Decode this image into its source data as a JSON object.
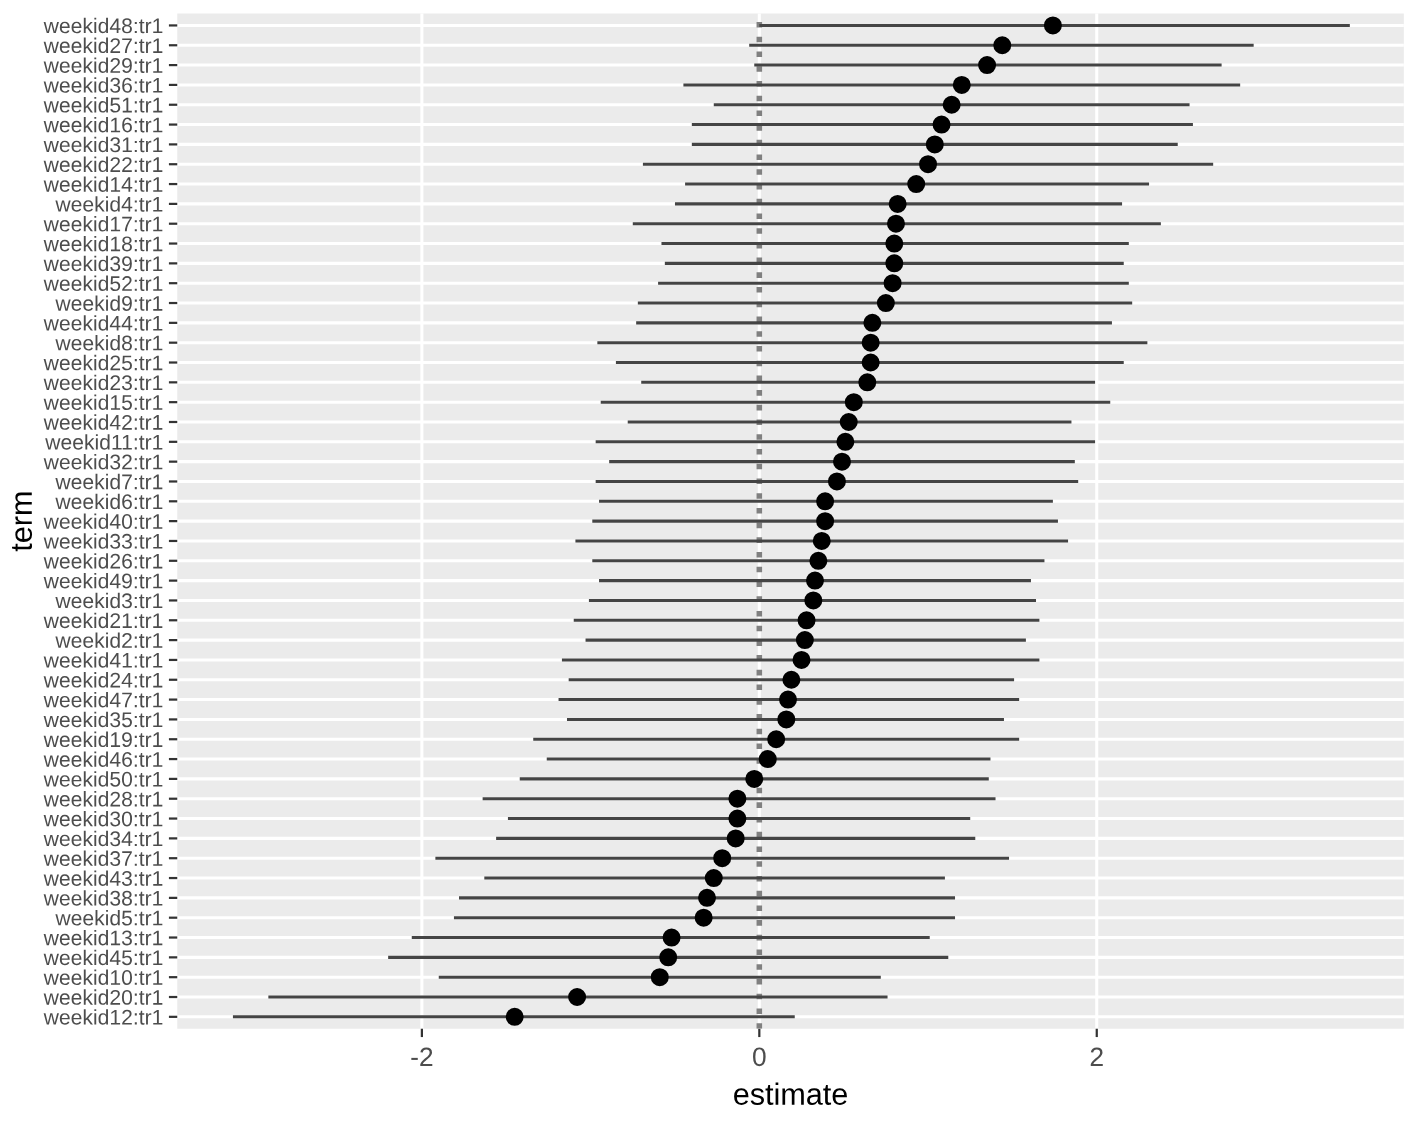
{
  "chart_data": {
    "type": "scatter",
    "orientation": "horizontal",
    "xlabel": "estimate",
    "ylabel": "term",
    "categories": [
      "weekid48:tr1",
      "weekid27:tr1",
      "weekid29:tr1",
      "weekid36:tr1",
      "weekid51:tr1",
      "weekid16:tr1",
      "weekid31:tr1",
      "weekid22:tr1",
      "weekid14:tr1",
      "weekid4:tr1",
      "weekid17:tr1",
      "weekid18:tr1",
      "weekid39:tr1",
      "weekid52:tr1",
      "weekid9:tr1",
      "weekid44:tr1",
      "weekid8:tr1",
      "weekid25:tr1",
      "weekid23:tr1",
      "weekid15:tr1",
      "weekid42:tr1",
      "weekid11:tr1",
      "weekid32:tr1",
      "weekid7:tr1",
      "weekid6:tr1",
      "weekid40:tr1",
      "weekid33:tr1",
      "weekid26:tr1",
      "weekid49:tr1",
      "weekid3:tr1",
      "weekid21:tr1",
      "weekid2:tr1",
      "weekid41:tr1",
      "weekid24:tr1",
      "weekid47:tr1",
      "weekid35:tr1",
      "weekid19:tr1",
      "weekid46:tr1",
      "weekid50:tr1",
      "weekid28:tr1",
      "weekid30:tr1",
      "weekid34:tr1",
      "weekid37:tr1",
      "weekid43:tr1",
      "weekid38:tr1",
      "weekid5:tr1",
      "weekid13:tr1",
      "weekid45:tr1",
      "weekid10:tr1",
      "weekid20:tr1",
      "weekid12:tr1"
    ],
    "series": [
      {
        "color": "#000000",
        "values": [
          1.74,
          1.44,
          1.35,
          1.2,
          1.14,
          1.08,
          1.04,
          1.0,
          0.93,
          0.82,
          0.81,
          0.8,
          0.8,
          0.79,
          0.75,
          0.67,
          0.66,
          0.66,
          0.64,
          0.56,
          0.53,
          0.51,
          0.49,
          0.46,
          0.39,
          0.39,
          0.37,
          0.35,
          0.33,
          0.32,
          0.28,
          0.27,
          0.25,
          0.19,
          0.17,
          0.16,
          0.1,
          0.05,
          -0.03,
          -0.13,
          -0.13,
          -0.14,
          -0.22,
          -0.27,
          -0.31,
          -0.33,
          -0.52,
          -0.54,
          -0.59,
          -1.08,
          -1.45
        ],
        "errors": [
          [
            0.0,
            3.5
          ],
          [
            -0.06,
            2.93
          ],
          [
            -0.03,
            2.74
          ],
          [
            -0.45,
            2.85
          ],
          [
            -0.27,
            2.55
          ],
          [
            -0.4,
            2.57
          ],
          [
            -0.4,
            2.48
          ],
          [
            -0.69,
            2.69
          ],
          [
            -0.44,
            2.31
          ],
          [
            -0.5,
            2.15
          ],
          [
            -0.75,
            2.38
          ],
          [
            -0.58,
            2.19
          ],
          [
            -0.56,
            2.16
          ],
          [
            -0.6,
            2.19
          ],
          [
            -0.72,
            2.21
          ],
          [
            -0.73,
            2.09
          ],
          [
            -0.96,
            2.3
          ],
          [
            -0.85,
            2.16
          ],
          [
            -0.7,
            1.99
          ],
          [
            -0.94,
            2.08
          ],
          [
            -0.78,
            1.85
          ],
          [
            -0.97,
            1.99
          ],
          [
            -0.89,
            1.87
          ],
          [
            -0.97,
            1.89
          ],
          [
            -0.95,
            1.74
          ],
          [
            -0.99,
            1.77
          ],
          [
            -1.09,
            1.83
          ],
          [
            -0.99,
            1.69
          ],
          [
            -0.95,
            1.61
          ],
          [
            -1.01,
            1.64
          ],
          [
            -1.1,
            1.66
          ],
          [
            -1.03,
            1.58
          ],
          [
            -1.17,
            1.66
          ],
          [
            -1.13,
            1.51
          ],
          [
            -1.19,
            1.54
          ],
          [
            -1.14,
            1.45
          ],
          [
            -1.34,
            1.54
          ],
          [
            -1.26,
            1.37
          ],
          [
            -1.42,
            1.36
          ],
          [
            -1.64,
            1.4
          ],
          [
            -1.49,
            1.25
          ],
          [
            -1.56,
            1.28
          ],
          [
            -1.92,
            1.48
          ],
          [
            -1.63,
            1.1
          ],
          [
            -1.78,
            1.16
          ],
          [
            -1.81,
            1.16
          ],
          [
            -2.06,
            1.01
          ],
          [
            -2.2,
            1.12
          ],
          [
            -1.9,
            0.72
          ],
          [
            -2.91,
            0.76
          ],
          [
            -3.12,
            0.21
          ]
        ]
      }
    ],
    "xlim": [
      -3.45,
      3.82
    ],
    "xticks": [
      -2,
      0,
      2
    ],
    "ref_lines": [
      {
        "axis": "x",
        "value": 0,
        "color": "#808080",
        "line_style": "dotted"
      }
    ],
    "marker": "circle",
    "grid": true,
    "legend": false
  }
}
